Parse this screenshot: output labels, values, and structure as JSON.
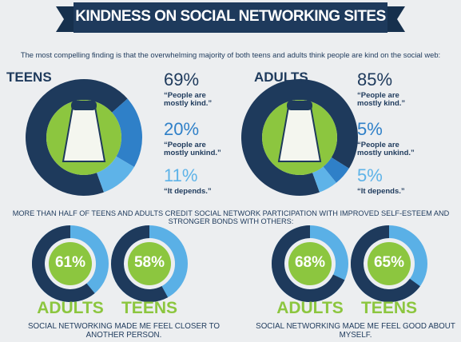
{
  "title": "KINDNESS ON SOCIAL NETWORKING SITES",
  "intro": "The most compelling finding is that the overwhelming majority of both teens and adults think people are kind on the social web:",
  "section_heading": "MORE THAN HALF OF TEENS AND ADULTS CREDIT SOCIAL NETWORK PARTICIPATION WITH IMPROVED SELF-ESTEEM AND STRONGER BONDS WITH OTHERS:",
  "captions": [
    "SOCIAL NETWORKING MADE ME FEEL CLOSER TO ANOTHER PERSON.",
    "SOCIAL NETWORKING MADE ME FEEL GOOD ABOUT MYSELF."
  ],
  "chart_data": [
    {
      "type": "donut",
      "title": "TEENS",
      "categories": [
        "“People are mostly kind.”",
        "“People are mostly unkind.”",
        "“It depends.”"
      ],
      "values": [
        69,
        20,
        11
      ],
      "value_labels": [
        "69%",
        "20%",
        "11%"
      ],
      "colors": [
        "#1e3a5c",
        "#2f80c8",
        "#5eb3e8"
      ],
      "center_color": "#8cc63f"
    },
    {
      "type": "donut",
      "title": "ADULTS",
      "categories": [
        "“People are mostly kind.”",
        "“People are mostly unkind.”",
        "“It depends.”"
      ],
      "values": [
        85,
        5,
        5
      ],
      "value_labels": [
        "85%",
        "5%",
        "5%"
      ],
      "colors": [
        "#1e3a5c",
        "#2f80c8",
        "#5eb3e8"
      ],
      "center_color": "#8cc63f"
    },
    {
      "type": "gauge",
      "title": "ADULTS",
      "values": [
        61
      ],
      "value_labels": [
        "61%"
      ],
      "color": "#1e3a5c",
      "track_color": "#5ab0e6",
      "center_color": "#8cc63f"
    },
    {
      "type": "gauge",
      "title": "TEENS",
      "values": [
        58
      ],
      "value_labels": [
        "58%"
      ],
      "color": "#1e3a5c",
      "track_color": "#5ab0e6",
      "center_color": "#8cc63f"
    },
    {
      "type": "gauge",
      "title": "ADULTS",
      "values": [
        68
      ],
      "value_labels": [
        "68%"
      ],
      "color": "#1e3a5c",
      "track_color": "#5ab0e6",
      "center_color": "#8cc63f"
    },
    {
      "type": "gauge",
      "title": "TEENS",
      "values": [
        65
      ],
      "value_labels": [
        "65%"
      ],
      "color": "#1e3a5c",
      "track_color": "#5ab0e6",
      "center_color": "#8cc63f"
    }
  ]
}
